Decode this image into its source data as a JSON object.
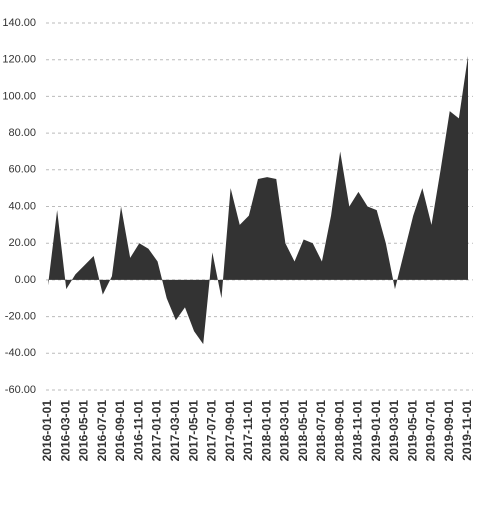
{
  "chart_data": {
    "type": "area",
    "color": "#333333",
    "grid": true,
    "categories": [
      "2016-01-01",
      null,
      "2016-03-01",
      null,
      "2016-05-01",
      null,
      "2016-07-01",
      null,
      "2016-09-01",
      null,
      "2016-11-01",
      null,
      "2017-01-01",
      null,
      "2017-03-01",
      null,
      "2017-05-01",
      null,
      "2017-07-01",
      null,
      "2017-09-01",
      null,
      "2017-11-01",
      null,
      "2018-01-01",
      null,
      "2018-03-01",
      null,
      "2018-05-01",
      null,
      "2018-07-01",
      null,
      "2018-09-01",
      null,
      "2018-11-01",
      null,
      "2019-01-01",
      null,
      "2019-03-01",
      null,
      "2019-05-01",
      null,
      "2019-07-01",
      null,
      "2019-09-01",
      null,
      "2019-11-01"
    ],
    "values": [
      -3,
      38,
      -5,
      3,
      8,
      13,
      -8,
      2,
      40,
      12,
      20,
      17,
      10,
      -10,
      -22,
      -15,
      -28,
      -35,
      15,
      -10,
      50,
      30,
      35,
      55,
      56,
      55,
      20,
      10,
      22,
      20,
      10,
      35,
      70,
      40,
      48,
      40,
      38,
      20,
      -5,
      15,
      35,
      50,
      30,
      60,
      92,
      88,
      122
    ],
    "ylim": [
      -60,
      140
    ],
    "yticks": [
      {
        "value": -60,
        "label": "-60.00"
      },
      {
        "value": -40,
        "label": "-40.00"
      },
      {
        "value": -20,
        "label": "-20.00"
      },
      {
        "value": 0,
        "label": "0.00"
      },
      {
        "value": 20,
        "label": "20.00"
      },
      {
        "value": 40,
        "label": "40.00"
      },
      {
        "value": 60,
        "label": "60.00"
      },
      {
        "value": 80,
        "label": "80.00"
      },
      {
        "value": 100,
        "label": "100.00"
      },
      {
        "value": 120,
        "label": "120.00"
      },
      {
        "value": 140,
        "label": "140.00"
      }
    ]
  }
}
